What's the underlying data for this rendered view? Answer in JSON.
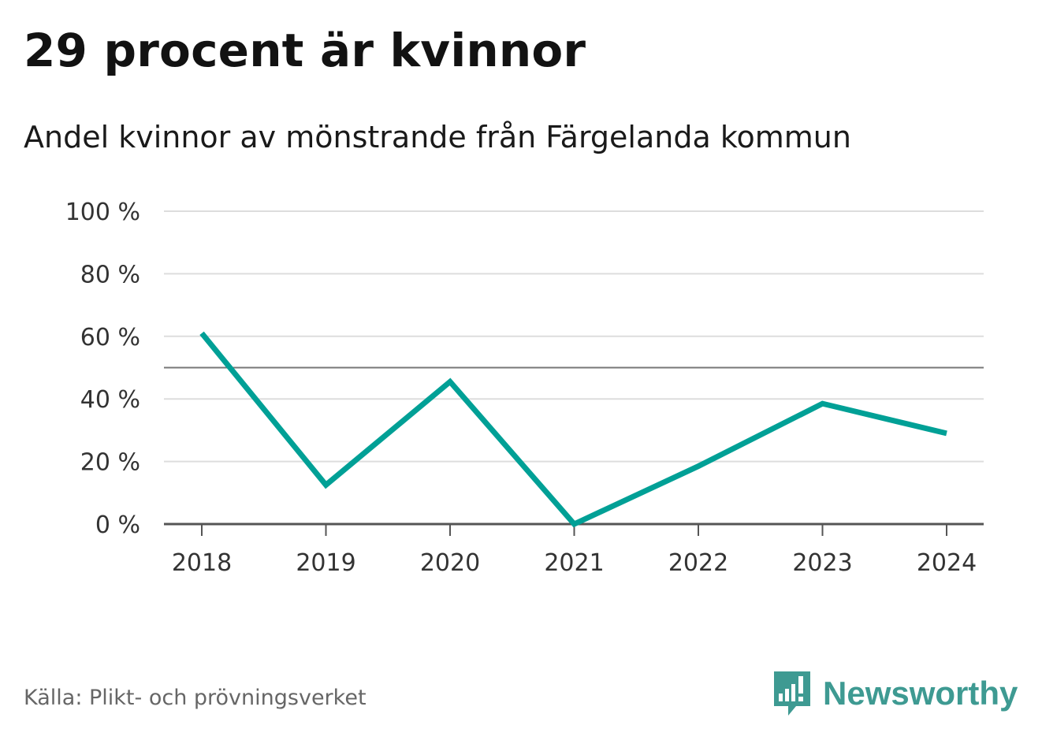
{
  "header": {
    "title": "29 procent är kvinnor",
    "subtitle": "Andel kvinnor av mönstrande från Färgelanda kommun"
  },
  "chart_data": {
    "type": "line",
    "title": "29 procent är kvinnor",
    "subtitle": "Andel kvinnor av mönstrande från Färgelanda kommun",
    "xlabel": "",
    "ylabel": "",
    "categories": [
      "2018",
      "2019",
      "2020",
      "2021",
      "2022",
      "2023",
      "2024"
    ],
    "series": [
      {
        "values": [
          61,
          12.5,
          45.5,
          0,
          18.5,
          38.5,
          29
        ],
        "color": "#00a096"
      }
    ],
    "ylim": [
      0,
      100
    ],
    "yticks": [
      0,
      20,
      40,
      60,
      80,
      100
    ],
    "ytick_labels": [
      "0 %",
      "20 %",
      "40 %",
      "60 %",
      "80 %",
      "100 %"
    ],
    "reference_line": 50,
    "grid": true,
    "legend": "none"
  },
  "footer": {
    "source": "Källa: Plikt- och prövningsverket",
    "brand": "Newsworthy",
    "brand_icon": "bar-chart-speech-bubble-icon",
    "brand_color": "#3e9a92"
  },
  "colors": {
    "line": "#00a096",
    "grid": "#dddddd",
    "axis": "#555555",
    "reference": "#777777"
  }
}
